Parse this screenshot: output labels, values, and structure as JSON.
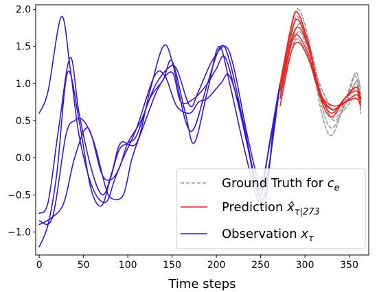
{
  "chart_data": {
    "type": "line",
    "title": "",
    "xlabel": "Time steps",
    "ylabel": "",
    "xlim": [
      -4,
      372
    ],
    "ylim": [
      -1.31,
      2.06
    ],
    "xticks": [
      0,
      50,
      100,
      150,
      200,
      250,
      300,
      350
    ],
    "yticks": [
      -1.0,
      -0.5,
      0.0,
      0.5,
      1.0,
      1.5,
      2.0
    ],
    "xtick_labels": [
      "0",
      "50",
      "100",
      "150",
      "200",
      "250",
      "300",
      "350"
    ],
    "ytick_labels": [
      "−1.0",
      "−0.5",
      "0.0",
      "0.5",
      "1.0",
      "1.5",
      "2.0"
    ],
    "grid": false,
    "legend_position": "bottom-right",
    "legend": [
      {
        "base": "Ground Truth for ",
        "math": "c",
        "sub": "e",
        "style": "dashed",
        "color": "#999999"
      },
      {
        "base": "Prediction ",
        "math": "x̂",
        "sub": "τ|273",
        "style": "solid",
        "color": "#ee2222"
      },
      {
        "base": "Observation ",
        "math": "x",
        "sub": "τ",
        "style": "solid",
        "color": "#3a16cc"
      }
    ],
    "series": [
      {
        "group": "observation",
        "color": "#3a16cc",
        "x": [
          0,
          10,
          25,
          35,
          45,
          60,
          75,
          85,
          95,
          110,
          130,
          142,
          155,
          170,
          180,
          190,
          205,
          215,
          230,
          242,
          250,
          262,
          272
        ],
        "y": [
          0.6,
          0.9,
          1.9,
          1.2,
          0.3,
          -0.4,
          -0.6,
          -0.3,
          0.0,
          0.4,
          1.1,
          1.1,
          0.7,
          0.6,
          0.75,
          0.8,
          1.0,
          1.1,
          0.5,
          -0.2,
          -0.4,
          0.3,
          1.0
        ]
      },
      {
        "group": "observation",
        "color": "#3a16cc",
        "x": [
          0,
          10,
          22,
          35,
          45,
          60,
          72,
          82,
          92,
          110,
          125,
          140,
          150,
          165,
          175,
          190,
          205,
          215,
          230,
          245,
          255,
          265,
          272
        ],
        "y": [
          -0.75,
          -0.6,
          0.4,
          1.35,
          0.6,
          -0.2,
          -0.5,
          -0.2,
          0.2,
          0.2,
          0.9,
          1.5,
          1.3,
          0.5,
          0.4,
          1.0,
          1.5,
          1.3,
          0.5,
          -0.4,
          -0.5,
          0.4,
          1.0
        ]
      },
      {
        "group": "observation",
        "color": "#3a16cc",
        "x": [
          0,
          10,
          20,
          32,
          45,
          58,
          70,
          80,
          90,
          100,
          110,
          125,
          140,
          150,
          165,
          175,
          190,
          203,
          215,
          230,
          245,
          255,
          265,
          272
        ],
        "y": [
          -1.2,
          -0.9,
          -0.2,
          1.15,
          0.5,
          -0.4,
          -0.65,
          -0.3,
          0.1,
          0.2,
          0.3,
          0.8,
          1.05,
          1.3,
          0.6,
          0.2,
          0.9,
          1.5,
          1.0,
          0.2,
          -0.5,
          -0.6,
          0.5,
          1.0
        ]
      },
      {
        "group": "observation",
        "color": "#3a16cc",
        "x": [
          0,
          15,
          30,
          40,
          50,
          62,
          75,
          82,
          95,
          105,
          120,
          135,
          150,
          160,
          175,
          190,
          200,
          210,
          225,
          240,
          250,
          260,
          272
        ],
        "y": [
          -0.85,
          -0.8,
          0.3,
          0.5,
          0.5,
          0.2,
          -0.4,
          -0.55,
          -0.5,
          0.0,
          0.5,
          0.95,
          1.15,
          0.75,
          0.8,
          1.0,
          1.2,
          1.35,
          0.7,
          -0.1,
          -0.5,
          0.2,
          1.0
        ]
      },
      {
        "group": "observation",
        "color": "#3a16cc",
        "x": [
          0,
          15,
          28,
          40,
          55,
          70,
          80,
          90,
          100,
          115,
          130,
          145,
          155,
          170,
          180,
          195,
          210,
          220,
          235,
          248,
          258,
          272
        ],
        "y": [
          -0.9,
          -0.8,
          -0.6,
          0.0,
          0.4,
          -0.2,
          -0.3,
          -0.15,
          0.2,
          0.5,
          0.95,
          1.2,
          1.2,
          0.7,
          0.9,
          1.3,
          1.5,
          1.2,
          0.3,
          -0.3,
          -0.2,
          1.0
        ]
      },
      {
        "group": "ground_truth",
        "color": "#999999",
        "x": [
          272,
          285,
          293,
          305,
          318,
          330,
          345,
          358,
          363
        ],
        "y": [
          1.0,
          1.75,
          2.0,
          1.55,
          0.65,
          0.3,
          0.75,
          1.15,
          0.7
        ]
      },
      {
        "group": "ground_truth",
        "color": "#999999",
        "x": [
          272,
          285,
          292,
          305,
          318,
          330,
          345,
          357,
          363
        ],
        "y": [
          0.9,
          1.65,
          1.9,
          1.5,
          0.75,
          0.4,
          0.7,
          1.1,
          0.65
        ]
      },
      {
        "group": "ground_truth",
        "color": "#999999",
        "x": [
          272,
          285,
          295,
          308,
          320,
          333,
          345,
          358,
          363
        ],
        "y": [
          0.85,
          1.55,
          1.8,
          1.4,
          0.8,
          0.5,
          0.7,
          1.0,
          0.6
        ]
      },
      {
        "group": "ground_truth",
        "color": "#999999",
        "x": [
          272,
          285,
          294,
          306,
          320,
          335,
          347,
          360,
          363
        ],
        "y": [
          0.8,
          1.45,
          1.7,
          1.35,
          0.9,
          0.6,
          0.8,
          1.05,
          0.8
        ]
      },
      {
        "group": "ground_truth",
        "color": "#999999",
        "x": [
          272,
          284,
          292,
          305,
          318,
          330,
          345,
          358,
          363
        ],
        "y": [
          0.8,
          1.4,
          1.6,
          1.3,
          0.85,
          0.55,
          0.65,
          0.85,
          0.65
        ]
      },
      {
        "group": "prediction",
        "color": "#ee2222",
        "x": [
          272,
          285,
          292,
          305,
          318,
          330,
          345,
          358,
          363
        ],
        "y": [
          1.0,
          1.8,
          1.95,
          1.5,
          0.8,
          0.55,
          0.8,
          0.95,
          0.75
        ]
      },
      {
        "group": "prediction",
        "color": "#ee2222",
        "x": [
          272,
          285,
          293,
          305,
          318,
          330,
          345,
          358,
          363
        ],
        "y": [
          0.95,
          1.7,
          1.85,
          1.45,
          0.85,
          0.6,
          0.8,
          0.9,
          0.75
        ]
      },
      {
        "group": "prediction",
        "color": "#ee2222",
        "x": [
          272,
          285,
          294,
          306,
          318,
          332,
          345,
          358,
          363
        ],
        "y": [
          0.9,
          1.6,
          1.75,
          1.4,
          0.85,
          0.65,
          0.8,
          0.95,
          0.8
        ]
      },
      {
        "group": "prediction",
        "color": "#ee2222",
        "x": [
          272,
          284,
          292,
          305,
          318,
          332,
          345,
          358,
          363
        ],
        "y": [
          0.8,
          1.5,
          1.65,
          1.35,
          0.85,
          0.7,
          0.75,
          0.85,
          0.75
        ]
      },
      {
        "group": "prediction",
        "color": "#ee2222",
        "x": [
          272,
          284,
          293,
          305,
          318,
          332,
          346,
          358,
          363
        ],
        "y": [
          0.7,
          1.4,
          1.55,
          1.3,
          0.8,
          0.65,
          0.75,
          0.8,
          0.7
        ]
      }
    ]
  }
}
